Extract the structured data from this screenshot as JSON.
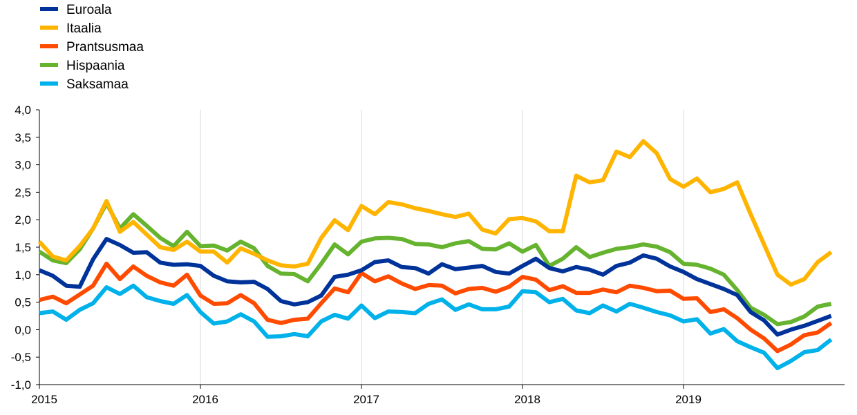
{
  "chart_data": {
    "type": "line",
    "title": "",
    "xlabel": "",
    "ylabel": "",
    "ylim": [
      -1.0,
      4.0
    ],
    "yticks": [
      "4,0",
      "3,5",
      "3,0",
      "2,5",
      "2,0",
      "1,5",
      "1,0",
      "0,5",
      "0,0",
      "-0,5",
      "-1,0"
    ],
    "xlim": [
      0,
      60
    ],
    "xticks": [
      {
        "label": "2015",
        "month_index": 0
      },
      {
        "label": "2016",
        "month_index": 12
      },
      {
        "label": "2017",
        "month_index": 24
      },
      {
        "label": "2018",
        "month_index": 36
      },
      {
        "label": "2019",
        "month_index": 48
      }
    ],
    "x_unit": "monthly observations, Jan 2015 – Dec 2019",
    "grid": "vertical lines at year starts",
    "legend_position": "top-left",
    "series": [
      {
        "name": "Euroala",
        "color": "#003399",
        "values": [
          1.08,
          0.98,
          0.8,
          0.78,
          1.28,
          1.65,
          1.54,
          1.4,
          1.41,
          1.22,
          1.18,
          1.19,
          1.16,
          0.98,
          0.88,
          0.86,
          0.87,
          0.74,
          0.52,
          0.46,
          0.5,
          0.62,
          0.96,
          1.0,
          1.08,
          1.23,
          1.26,
          1.14,
          1.12,
          1.02,
          1.19,
          1.1,
          1.13,
          1.16,
          1.05,
          1.02,
          1.16,
          1.29,
          1.12,
          1.06,
          1.14,
          1.09,
          1.0,
          1.16,
          1.22,
          1.35,
          1.29,
          1.15,
          1.05,
          0.92,
          0.83,
          0.74,
          0.63,
          0.32,
          0.17,
          -0.09,
          0.0,
          0.07,
          0.16,
          0.25
        ]
      },
      {
        "name": "Itaalia",
        "color": "#FFB400",
        "values": [
          1.6,
          1.33,
          1.26,
          1.52,
          1.84,
          2.34,
          1.78,
          1.96,
          1.73,
          1.5,
          1.45,
          1.6,
          1.42,
          1.42,
          1.22,
          1.48,
          1.38,
          1.26,
          1.17,
          1.15,
          1.2,
          1.67,
          1.99,
          1.81,
          2.25,
          2.1,
          2.32,
          2.28,
          2.21,
          2.16,
          2.1,
          2.05,
          2.11,
          1.82,
          1.75,
          2.01,
          2.03,
          1.97,
          1.79,
          1.79,
          2.8,
          2.68,
          2.72,
          3.24,
          3.14,
          3.43,
          3.21,
          2.74,
          2.6,
          2.75,
          2.5,
          2.56,
          2.68,
          2.1,
          1.55,
          1.0,
          0.82,
          0.92,
          1.23,
          1.41
        ]
      },
      {
        "name": "Prantsusmaa",
        "color": "#FF4B00",
        "values": [
          0.54,
          0.6,
          0.48,
          0.64,
          0.8,
          1.2,
          0.92,
          1.15,
          0.98,
          0.86,
          0.8,
          1.0,
          0.62,
          0.47,
          0.48,
          0.63,
          0.48,
          0.18,
          0.12,
          0.18,
          0.2,
          0.48,
          0.75,
          0.68,
          1.03,
          0.88,
          0.97,
          0.84,
          0.74,
          0.81,
          0.8,
          0.66,
          0.74,
          0.76,
          0.69,
          0.78,
          0.96,
          0.91,
          0.72,
          0.79,
          0.67,
          0.67,
          0.73,
          0.68,
          0.8,
          0.76,
          0.7,
          0.71,
          0.56,
          0.57,
          0.32,
          0.37,
          0.21,
          0.0,
          -0.16,
          -0.39,
          -0.27,
          -0.1,
          -0.05,
          0.12
        ]
      },
      {
        "name": "Hispaania",
        "color": "#65B32E",
        "values": [
          1.42,
          1.26,
          1.21,
          1.46,
          1.84,
          2.3,
          1.84,
          2.1,
          1.89,
          1.67,
          1.52,
          1.78,
          1.52,
          1.53,
          1.44,
          1.6,
          1.48,
          1.16,
          1.02,
          1.01,
          0.88,
          1.2,
          1.55,
          1.37,
          1.6,
          1.66,
          1.67,
          1.65,
          1.56,
          1.55,
          1.5,
          1.57,
          1.61,
          1.47,
          1.46,
          1.57,
          1.42,
          1.54,
          1.16,
          1.29,
          1.5,
          1.32,
          1.4,
          1.47,
          1.5,
          1.55,
          1.51,
          1.41,
          1.2,
          1.18,
          1.11,
          1.0,
          0.72,
          0.4,
          0.27,
          0.1,
          0.14,
          0.24,
          0.42,
          0.47
        ]
      },
      {
        "name": "Saksamaa",
        "color": "#00B1EA",
        "values": [
          0.3,
          0.33,
          0.18,
          0.36,
          0.48,
          0.77,
          0.65,
          0.8,
          0.59,
          0.52,
          0.47,
          0.63,
          0.32,
          0.11,
          0.15,
          0.28,
          0.15,
          -0.13,
          -0.12,
          -0.08,
          -0.12,
          0.15,
          0.27,
          0.2,
          0.44,
          0.21,
          0.33,
          0.32,
          0.3,
          0.47,
          0.55,
          0.36,
          0.46,
          0.37,
          0.37,
          0.42,
          0.7,
          0.68,
          0.5,
          0.56,
          0.35,
          0.3,
          0.44,
          0.33,
          0.47,
          0.4,
          0.32,
          0.26,
          0.15,
          0.19,
          -0.07,
          0.01,
          -0.21,
          -0.32,
          -0.42,
          -0.7,
          -0.57,
          -0.41,
          -0.37,
          -0.18
        ]
      }
    ]
  }
}
